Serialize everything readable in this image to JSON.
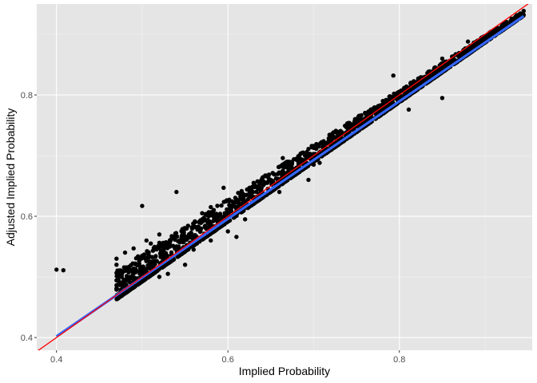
{
  "chart_data": {
    "type": "scatter",
    "title": "",
    "xlabel": "Implied Probability",
    "ylabel": "Adjusted Implied Probability",
    "xlim": [
      0.377,
      0.955
    ],
    "ylim": [
      0.379,
      0.95
    ],
    "x_ticks": [
      {
        "value": 0.4,
        "label": "0.4"
      },
      {
        "value": 0.6,
        "label": "0.6"
      },
      {
        "value": 0.8,
        "label": "0.8"
      }
    ],
    "y_ticks": [
      {
        "value": 0.4,
        "label": "0.4"
      },
      {
        "value": 0.6,
        "label": "0.6"
      },
      {
        "value": 0.8,
        "label": "0.8"
      }
    ],
    "grid": true,
    "legend": "none",
    "panel_background": "#e5e5e5",
    "point_color": "#000000",
    "lines": [
      {
        "kind": "fitted-regression",
        "color": "#3366ff",
        "x": [
          0.4,
          0.945
        ],
        "y": [
          0.402,
          0.93
        ]
      },
      {
        "kind": "identity-y-equals-x",
        "color": "#ff0000",
        "x": [
          0.377,
          0.955
        ],
        "y": [
          0.377,
          0.955
        ]
      }
    ],
    "points": [
      [
        0.4,
        0.512
      ],
      [
        0.408,
        0.511
      ],
      [
        0.5,
        0.617
      ],
      [
        0.502,
        0.5
      ],
      [
        0.54,
        0.64
      ],
      [
        0.595,
        0.647
      ],
      [
        0.664,
        0.696
      ],
      [
        0.707,
        0.688
      ],
      [
        0.694,
        0.711
      ],
      [
        0.694,
        0.66
      ],
      [
        0.722,
        0.728
      ],
      [
        0.811,
        0.776
      ],
      [
        0.793,
        0.832
      ],
      [
        0.85,
        0.795
      ],
      [
        0.61,
        0.566
      ],
      [
        0.62,
        0.595
      ],
      [
        0.6,
        0.575
      ],
      [
        0.58,
        0.615
      ],
      [
        0.57,
        0.605
      ],
      [
        0.56,
        0.545
      ],
      [
        0.52,
        0.57
      ],
      [
        0.51,
        0.555
      ],
      [
        0.505,
        0.56
      ],
      [
        0.49,
        0.547
      ],
      [
        0.47,
        0.52
      ],
      [
        0.47,
        0.53
      ],
      [
        0.48,
        0.54
      ],
      [
        0.48,
        0.51
      ],
      [
        0.5,
        0.535
      ],
      [
        0.51,
        0.515
      ],
      [
        0.52,
        0.5
      ],
      [
        0.53,
        0.505
      ],
      [
        0.55,
        0.52
      ],
      [
        0.56,
        0.565
      ],
      [
        0.58,
        0.56
      ],
      [
        0.6,
        0.605
      ],
      [
        0.62,
        0.62
      ],
      [
        0.63,
        0.655
      ],
      [
        0.64,
        0.64
      ],
      [
        0.65,
        0.66
      ],
      [
        0.66,
        0.64
      ],
      [
        0.67,
        0.69
      ],
      [
        0.68,
        0.68
      ],
      [
        0.69,
        0.7
      ],
      [
        0.7,
        0.685
      ],
      [
        0.71,
        0.72
      ],
      [
        0.72,
        0.715
      ],
      [
        0.73,
        0.735
      ],
      [
        0.74,
        0.73
      ],
      [
        0.75,
        0.76
      ],
      [
        0.76,
        0.75
      ],
      [
        0.77,
        0.778
      ],
      [
        0.78,
        0.775
      ],
      [
        0.79,
        0.795
      ],
      [
        0.8,
        0.79
      ],
      [
        0.81,
        0.81
      ],
      [
        0.82,
        0.815
      ],
      [
        0.83,
        0.83
      ],
      [
        0.84,
        0.835
      ],
      [
        0.85,
        0.845
      ],
      [
        0.86,
        0.855
      ],
      [
        0.87,
        0.865
      ],
      [
        0.88,
        0.875
      ],
      [
        0.89,
        0.885
      ],
      [
        0.9,
        0.893
      ],
      [
        0.91,
        0.905
      ],
      [
        0.92,
        0.915
      ],
      [
        0.93,
        0.922
      ],
      [
        0.94,
        0.93
      ],
      [
        0.945,
        0.932
      ],
      [
        0.85,
        0.86
      ],
      [
        0.88,
        0.888
      ]
    ]
  }
}
